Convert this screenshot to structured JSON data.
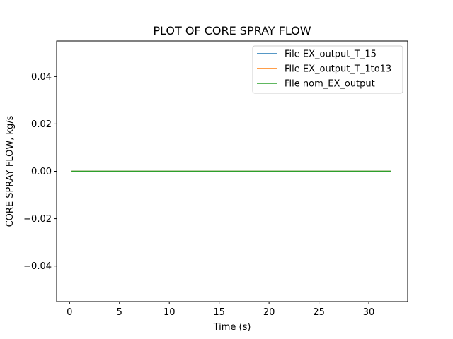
{
  "chart_data": {
    "type": "line",
    "title": "PLOT OF CORE SPRAY FLOW",
    "xlabel": "Time (s)",
    "ylabel": "CORE SPRAY FLOW, kg/s",
    "xlim": [
      -1.3,
      33.9
    ],
    "ylim": [
      -0.055,
      0.055
    ],
    "xticks": [
      0,
      5,
      10,
      15,
      20,
      25,
      30
    ],
    "yticks": [
      -0.04,
      -0.02,
      0.0,
      0.02,
      0.04
    ],
    "xtick_labels": [
      "0",
      "5",
      "10",
      "15",
      "20",
      "25",
      "30"
    ],
    "ytick_labels": [
      "−0.04",
      "−0.02",
      "0.00",
      "0.02",
      "0.04"
    ],
    "grid": false,
    "legend_position": "top-right",
    "series": [
      {
        "name": "File EX_output_T_15",
        "color": "#1f77b4",
        "x": [
          0.2,
          32.2
        ],
        "y": [
          0,
          0
        ]
      },
      {
        "name": "File EX_output_T_1to13",
        "color": "#ff7f0e",
        "x": [
          0.2,
          32.2
        ],
        "y": [
          0,
          0
        ]
      },
      {
        "name": "File nom_EX_output",
        "color": "#2ca02c",
        "x": [
          0.2,
          32.2
        ],
        "y": [
          0,
          0
        ]
      }
    ]
  }
}
